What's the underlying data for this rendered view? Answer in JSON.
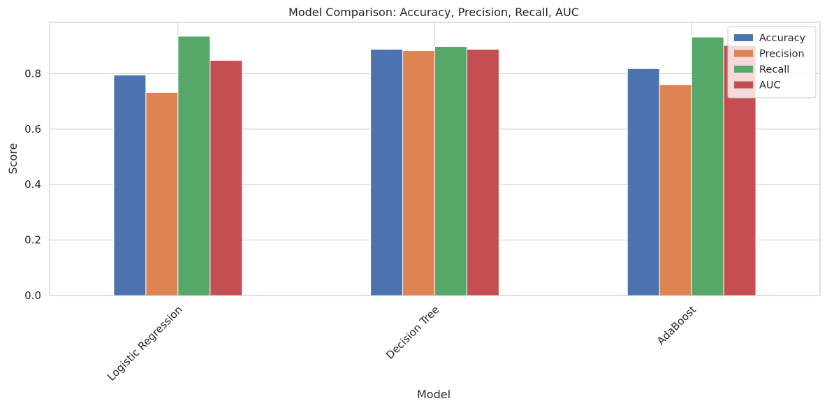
{
  "chart_data": {
    "type": "bar",
    "title": "Model Comparison: Accuracy, Precision, Recall, AUC",
    "xlabel": "Model",
    "ylabel": "Score",
    "categories": [
      "Logistic Regression",
      "Decision Tree",
      "AdaBoost"
    ],
    "series": [
      {
        "name": "Accuracy",
        "color": "#4c72b0",
        "values": [
          0.795,
          0.888,
          0.818
        ]
      },
      {
        "name": "Precision",
        "color": "#dd8452",
        "values": [
          0.732,
          0.883,
          0.76
        ]
      },
      {
        "name": "Recall",
        "color": "#55a868",
        "values": [
          0.935,
          0.898,
          0.932
        ]
      },
      {
        "name": "AUC",
        "color": "#c44e52",
        "values": [
          0.848,
          0.888,
          0.902
        ]
      }
    ],
    "ylim": [
      0,
      0.985
    ],
    "yticks": [
      0.0,
      0.2,
      0.4,
      0.6,
      0.8
    ],
    "ytick_labels": [
      "0.0",
      "0.2",
      "0.4",
      "0.6",
      "0.8"
    ],
    "grid": true,
    "legend_position": "top-right",
    "xtick_rotation_deg": 45
  }
}
